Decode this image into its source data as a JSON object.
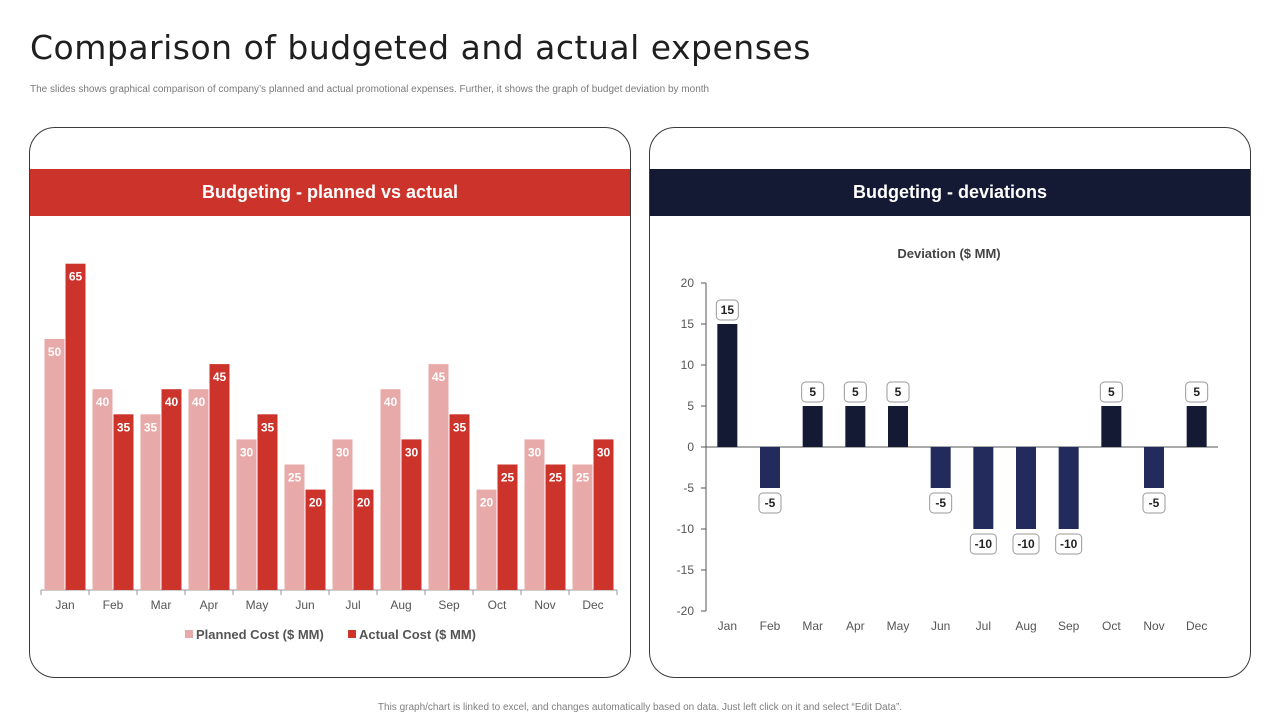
{
  "page": {
    "title": "Comparison of budgeted and actual expenses",
    "subtitle": "The slides shows graphical comparison of company’s planned and actual promotional expenses. Further, it shows the graph of budget deviation by month",
    "footer": "This graph/chart is linked to excel, and changes automatically based on data. Just left click on it and select “Edit Data”."
  },
  "colors": {
    "planned": "#e8aaa8",
    "actual": "#cc342b",
    "deviation": "#141a33",
    "deviation_negative": "#232a5c"
  },
  "chart_data": [
    {
      "type": "bar",
      "panel_title": "Budgeting  - planned  vs  actual",
      "title": "",
      "categories": [
        "Jan",
        "Feb",
        "Mar",
        "Apr",
        "May",
        "Jun",
        "Jul",
        "Aug",
        "Sep",
        "Oct",
        "Nov",
        "Dec"
      ],
      "series": [
        {
          "name": "Planned Cost ($ MM)",
          "values": [
            50,
            40,
            35,
            40,
            30,
            25,
            30,
            40,
            45,
            20,
            30,
            25
          ]
        },
        {
          "name": "Actual Cost ($ MM)",
          "values": [
            65,
            35,
            40,
            45,
            35,
            20,
            20,
            30,
            35,
            25,
            25,
            30
          ]
        }
      ],
      "ylim": [
        0,
        65
      ],
      "legend": "bottom",
      "grid": false
    },
    {
      "type": "bar",
      "panel_title": "Budgeting  - deviations",
      "title": "Deviation ($ MM)",
      "categories": [
        "Jan",
        "Feb",
        "Mar",
        "Apr",
        "May",
        "Jun",
        "Jul",
        "Aug",
        "Sep",
        "Oct",
        "Nov",
        "Dec"
      ],
      "series": [
        {
          "name": "Deviation ($ MM)",
          "values": [
            15,
            -5,
            5,
            5,
            5,
            -5,
            -10,
            -10,
            -10,
            5,
            -5,
            5
          ]
        }
      ],
      "ylim": [
        -20,
        20
      ],
      "yticks": [
        "20",
        "15",
        "10",
        "5",
        "0",
        "-5",
        "-10",
        "-15",
        "-20"
      ],
      "grid": false
    }
  ]
}
